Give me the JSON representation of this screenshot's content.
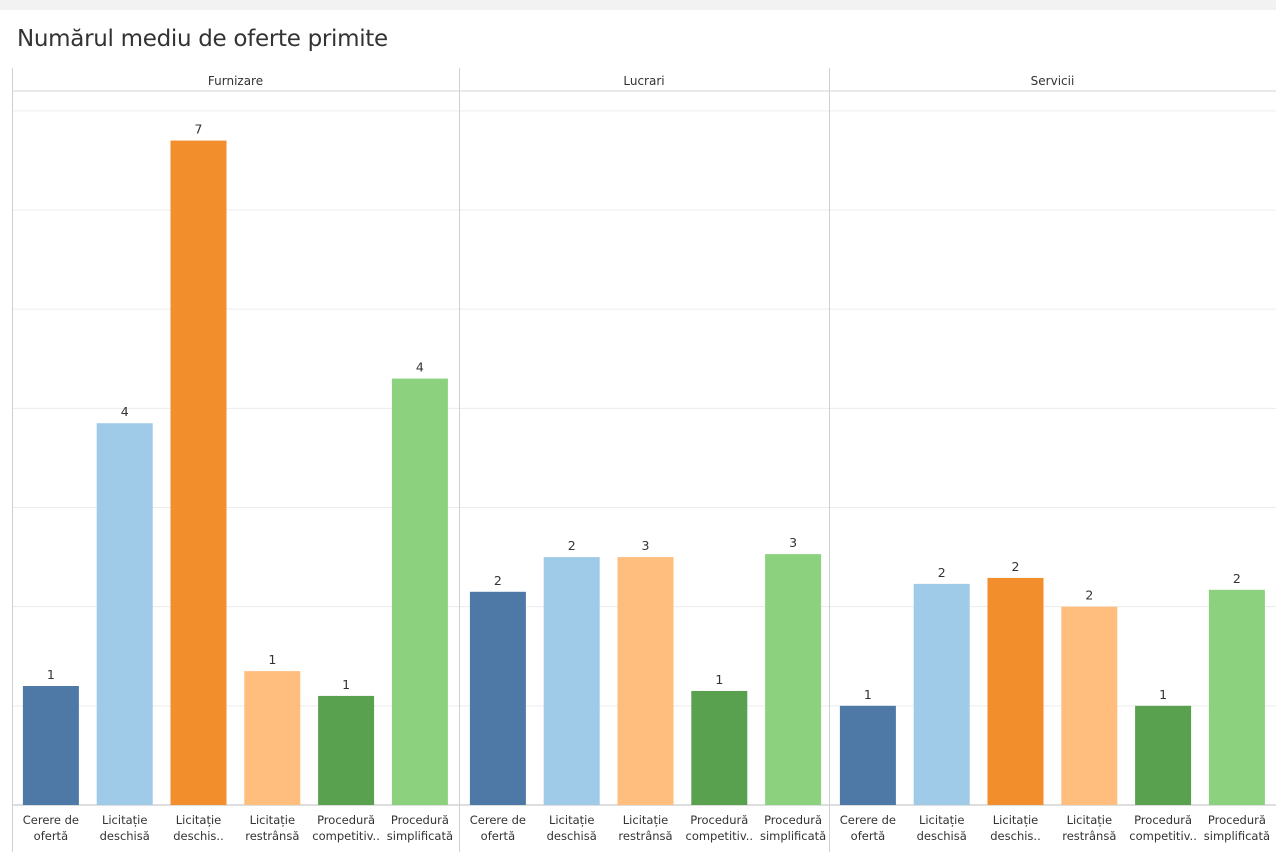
{
  "title": "Numărul mediu de oferte primite",
  "chart_data": {
    "type": "bar",
    "title": "Numărul mediu de oferte primite",
    "ylim": [
      0,
      7.2
    ],
    "grid": true,
    "categories": [
      [
        "Cerere de",
        "ofertă"
      ],
      [
        "Licitație",
        "deschisă"
      ],
      [
        "Licitație",
        "deschis.."
      ],
      [
        "Licitație",
        "restrânsă"
      ],
      [
        "Procedură",
        "competitiv.."
      ],
      [
        "Procedură",
        "simplificată"
      ]
    ],
    "colors": [
      "#4e79a7",
      "#a0cbe8",
      "#f28e2b",
      "#ffbe7d",
      "#59a14f",
      "#8cd17d"
    ],
    "panels": [
      {
        "name": "Furnizare",
        "bars": [
          {
            "category": 0,
            "value": 1.2,
            "label": "1"
          },
          {
            "category": 1,
            "value": 3.85,
            "label": "4"
          },
          {
            "category": 2,
            "value": 6.7,
            "label": "7"
          },
          {
            "category": 3,
            "value": 1.35,
            "label": "1"
          },
          {
            "category": 4,
            "value": 1.1,
            "label": "1"
          },
          {
            "category": 5,
            "value": 4.3,
            "label": "4"
          }
        ]
      },
      {
        "name": "Lucrari",
        "bars": [
          {
            "category": 0,
            "value": 2.15,
            "label": "2"
          },
          {
            "category": 1,
            "value": 2.5,
            "label": "2"
          },
          {
            "category": 3,
            "value": 2.5,
            "label": "3"
          },
          {
            "category": 4,
            "value": 1.15,
            "label": "1"
          },
          {
            "category": 5,
            "value": 2.53,
            "label": "3"
          }
        ]
      },
      {
        "name": "Servicii",
        "bars": [
          {
            "category": 0,
            "value": 1.0,
            "label": "1"
          },
          {
            "category": 1,
            "value": 2.23,
            "label": "2"
          },
          {
            "category": 2,
            "value": 2.29,
            "label": "2"
          },
          {
            "category": 3,
            "value": 2.0,
            "label": "2"
          },
          {
            "category": 4,
            "value": 1.0,
            "label": "1"
          },
          {
            "category": 5,
            "value": 2.17,
            "label": "2"
          }
        ]
      }
    ]
  }
}
